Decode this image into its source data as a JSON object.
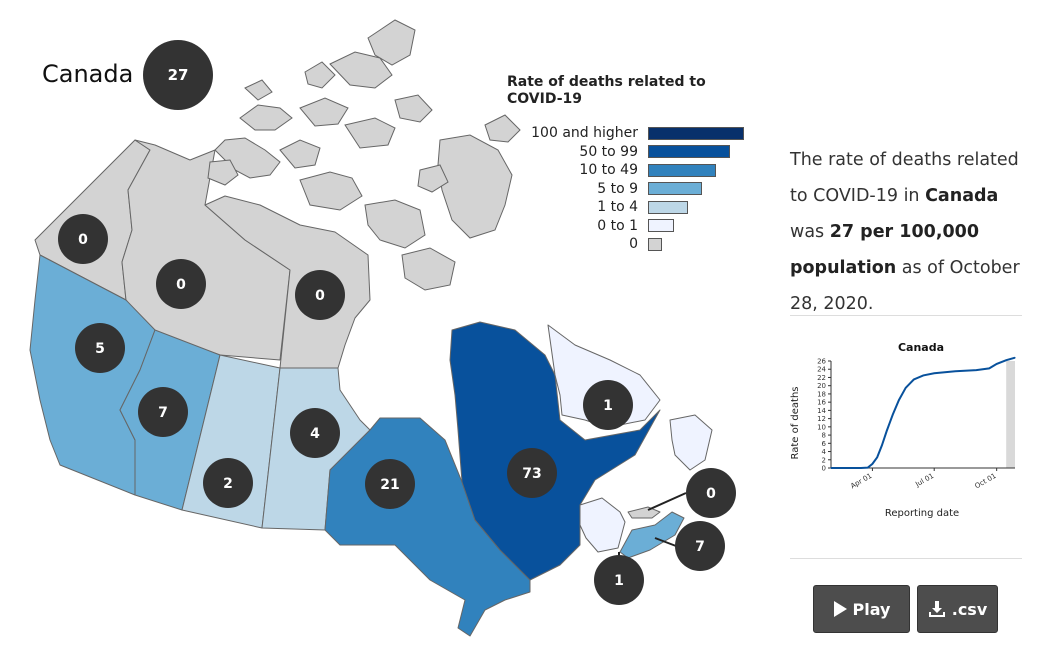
{
  "title": "Canada",
  "national_rate": "27",
  "legend": {
    "title": "Rate of deaths related to COVID-19",
    "items": [
      {
        "label": "100 and higher",
        "color": "#08306b"
      },
      {
        "label": "50 to 99",
        "color": "#08519c"
      },
      {
        "label": "10 to 49",
        "color": "#3182bd"
      },
      {
        "label": "5 to 9",
        "color": "#6baed6"
      },
      {
        "label": "1 to 4",
        "color": "#bdd7e7"
      },
      {
        "label": "0 to 1",
        "color": "#eff3ff"
      },
      {
        "label": "0",
        "color": "#d3d3d3"
      }
    ]
  },
  "provinces": [
    {
      "name": "Yukon",
      "value": "0",
      "color": "#d3d3d3"
    },
    {
      "name": "Northwest Territories",
      "value": "0",
      "color": "#d3d3d3"
    },
    {
      "name": "Nunavut",
      "value": "0",
      "color": "#d3d3d3"
    },
    {
      "name": "British Columbia",
      "value": "5",
      "color": "#6baed6"
    },
    {
      "name": "Alberta",
      "value": "7",
      "color": "#6baed6"
    },
    {
      "name": "Saskatchewan",
      "value": "2",
      "color": "#bdd7e7"
    },
    {
      "name": "Manitoba",
      "value": "4",
      "color": "#bdd7e7"
    },
    {
      "name": "Ontario",
      "value": "21",
      "color": "#3182bd"
    },
    {
      "name": "Quebec",
      "value": "73",
      "color": "#08519c"
    },
    {
      "name": "Newfoundland and Labrador",
      "value": "1",
      "color": "#eff3ff"
    },
    {
      "name": "Prince Edward Island",
      "value": "0",
      "color": "#d3d3d3"
    },
    {
      "name": "Nova Scotia",
      "value": "7",
      "color": "#6baed6"
    },
    {
      "name": "New Brunswick",
      "value": "1",
      "color": "#eff3ff"
    }
  ],
  "summary": {
    "prefix": "The rate of deaths related to COVID-19 in ",
    "region": "Canada",
    "middle": " was ",
    "rate": "27 per 100,000 population",
    "suffix": " as of October 28, 2020."
  },
  "chart_data": {
    "type": "line",
    "title": "Canada",
    "xlabel": "Reporting date",
    "ylabel": "Rate of deaths",
    "ylim": [
      0,
      26
    ],
    "yticks": [
      0,
      2,
      4,
      6,
      8,
      10,
      12,
      14,
      16,
      18,
      20,
      22,
      24,
      26
    ],
    "xticks": [
      "Apr 01",
      "Jul 01",
      "Oct 01"
    ],
    "x": [
      "2020-01-31",
      "2020-03-01",
      "2020-03-15",
      "2020-03-25",
      "2020-04-01",
      "2020-04-08",
      "2020-04-15",
      "2020-04-22",
      "2020-05-01",
      "2020-05-10",
      "2020-05-20",
      "2020-06-01",
      "2020-06-15",
      "2020-07-01",
      "2020-08-01",
      "2020-09-01",
      "2020-09-20",
      "2020-10-01",
      "2020-10-15",
      "2020-10-28"
    ],
    "y": [
      0,
      0,
      0,
      0.1,
      1,
      2.6,
      5.5,
      9,
      13,
      16.5,
      19.5,
      21.5,
      22.5,
      23,
      23.5,
      23.8,
      24.2,
      25.3,
      26.2,
      26.8
    ],
    "highlight_end": "2020-10-28",
    "line_color": "#08519c"
  },
  "buttons": {
    "play_label": "Play",
    "csv_label": ".csv",
    "play_icon": "play-icon",
    "download_icon": "download-icon"
  }
}
